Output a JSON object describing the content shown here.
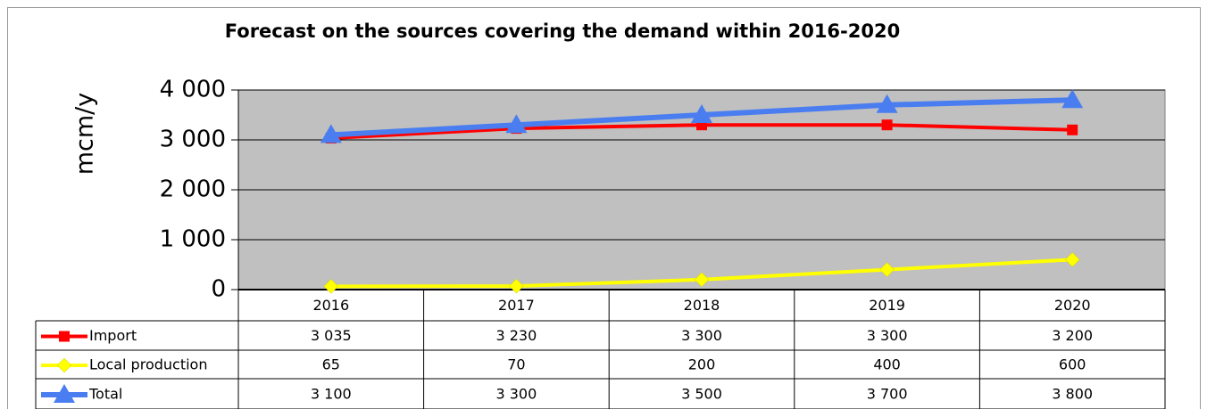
{
  "chart_data": {
    "type": "line",
    "title": "Forecast on the sources covering the demand within 2016-2020",
    "y_label": "mcm/y",
    "categories": [
      "2016",
      "2017",
      "2018",
      "2019",
      "2020"
    ],
    "series": [
      {
        "name": "Import",
        "color": "#ff0000",
        "marker": "square",
        "values": [
          3035,
          3230,
          3300,
          3300,
          3200
        ],
        "value_labels": [
          "3 035",
          "3 230",
          "3 300",
          "3 300",
          "3 200"
        ]
      },
      {
        "name": "Local production",
        "color": "#ffff00",
        "marker": "diamond",
        "values": [
          65,
          70,
          200,
          400,
          600
        ],
        "value_labels": [
          "65",
          "70",
          "200",
          "400",
          "600"
        ]
      },
      {
        "name": "Total",
        "color": "#4a7ef0",
        "marker": "triangle",
        "values": [
          3100,
          3300,
          3500,
          3700,
          3800
        ],
        "value_labels": [
          "3 100",
          "3 300",
          "3 500",
          "3 700",
          "3 800"
        ]
      }
    ],
    "ylim": [
      0,
      4000
    ],
    "yticks": [
      {
        "value": 0,
        "label": "0"
      },
      {
        "value": 1000,
        "label": "1 000"
      },
      {
        "value": 2000,
        "label": "2 000"
      },
      {
        "value": 3000,
        "label": "3 000"
      },
      {
        "value": 4000,
        "label": "4 000"
      }
    ],
    "grid": true,
    "plot_background": "#c0c0c0"
  }
}
